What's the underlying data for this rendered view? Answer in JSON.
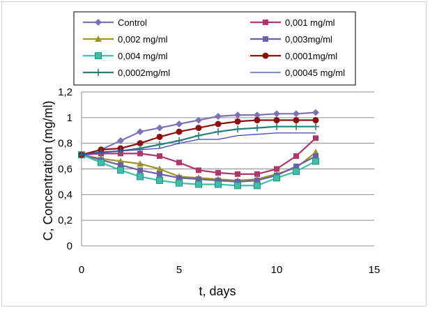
{
  "chart_data": {
    "type": "line",
    "title": "",
    "xlabel": "t, days",
    "ylabel": "C, Concentration (mg/ml)",
    "xlim": [
      0,
      15
    ],
    "ylim": [
      0,
      1.2
    ],
    "x_ticks": [
      "0",
      "5",
      "10",
      "15"
    ],
    "y_ticks": [
      "0",
      "0,2",
      "0,4",
      "0,6",
      "0,8",
      "1",
      "1,2"
    ],
    "grid": "horizontal",
    "legend_position": "top",
    "x": [
      0,
      1,
      2,
      3,
      4,
      5,
      6,
      7,
      8,
      9,
      10,
      11,
      12
    ],
    "series": [
      {
        "name": "Control",
        "color": "#7b72b8",
        "marker": "diamond",
        "values": [
          0.71,
          0.75,
          0.82,
          0.89,
          0.92,
          0.95,
          0.98,
          1.01,
          1.02,
          1.02,
          1.03,
          1.03,
          1.04
        ]
      },
      {
        "name": "0,001 mg/ml",
        "color": "#b0356f",
        "marker": "square",
        "values": [
          0.71,
          0.72,
          0.72,
          0.72,
          0.7,
          0.65,
          0.59,
          0.57,
          0.56,
          0.56,
          0.6,
          0.7,
          0.84
        ]
      },
      {
        "name": "0,002 mg/ml",
        "color": "#9c9427",
        "marker": "triangle",
        "values": [
          0.71,
          0.68,
          0.66,
          0.64,
          0.6,
          0.54,
          0.53,
          0.52,
          0.51,
          0.52,
          0.56,
          0.61,
          0.73
        ]
      },
      {
        "name": "0,003mg/ml",
        "color": "#6a5fa8",
        "marker": "square",
        "values": [
          0.71,
          0.67,
          0.63,
          0.59,
          0.56,
          0.53,
          0.52,
          0.51,
          0.5,
          0.51,
          0.55,
          0.62,
          0.7
        ]
      },
      {
        "name": "0,004 mg/ml",
        "color": "#3fbfaa",
        "marker": "square-open",
        "values": [
          0.71,
          0.65,
          0.59,
          0.54,
          0.51,
          0.49,
          0.48,
          0.48,
          0.47,
          0.47,
          0.53,
          0.58,
          0.66
        ]
      },
      {
        "name": "0,0001mg/ml",
        "color": "#8b1010",
        "marker": "circle",
        "values": [
          0.71,
          0.75,
          0.76,
          0.8,
          0.85,
          0.89,
          0.92,
          0.95,
          0.97,
          0.98,
          0.98,
          0.98,
          0.98
        ]
      },
      {
        "name": "0,0002mg/ml",
        "color": "#27807a",
        "marker": "plus",
        "values": [
          0.71,
          0.73,
          0.74,
          0.76,
          0.79,
          0.82,
          0.86,
          0.89,
          0.91,
          0.92,
          0.93,
          0.93,
          0.93
        ]
      },
      {
        "name": "0,00045 mg/ml",
        "color": "#3a43c4",
        "marker": "none",
        "values": [
          0.71,
          0.73,
          0.74,
          0.75,
          0.76,
          0.8,
          0.83,
          0.83,
          0.86,
          0.87,
          0.88,
          0.88,
          0.88
        ]
      }
    ]
  }
}
